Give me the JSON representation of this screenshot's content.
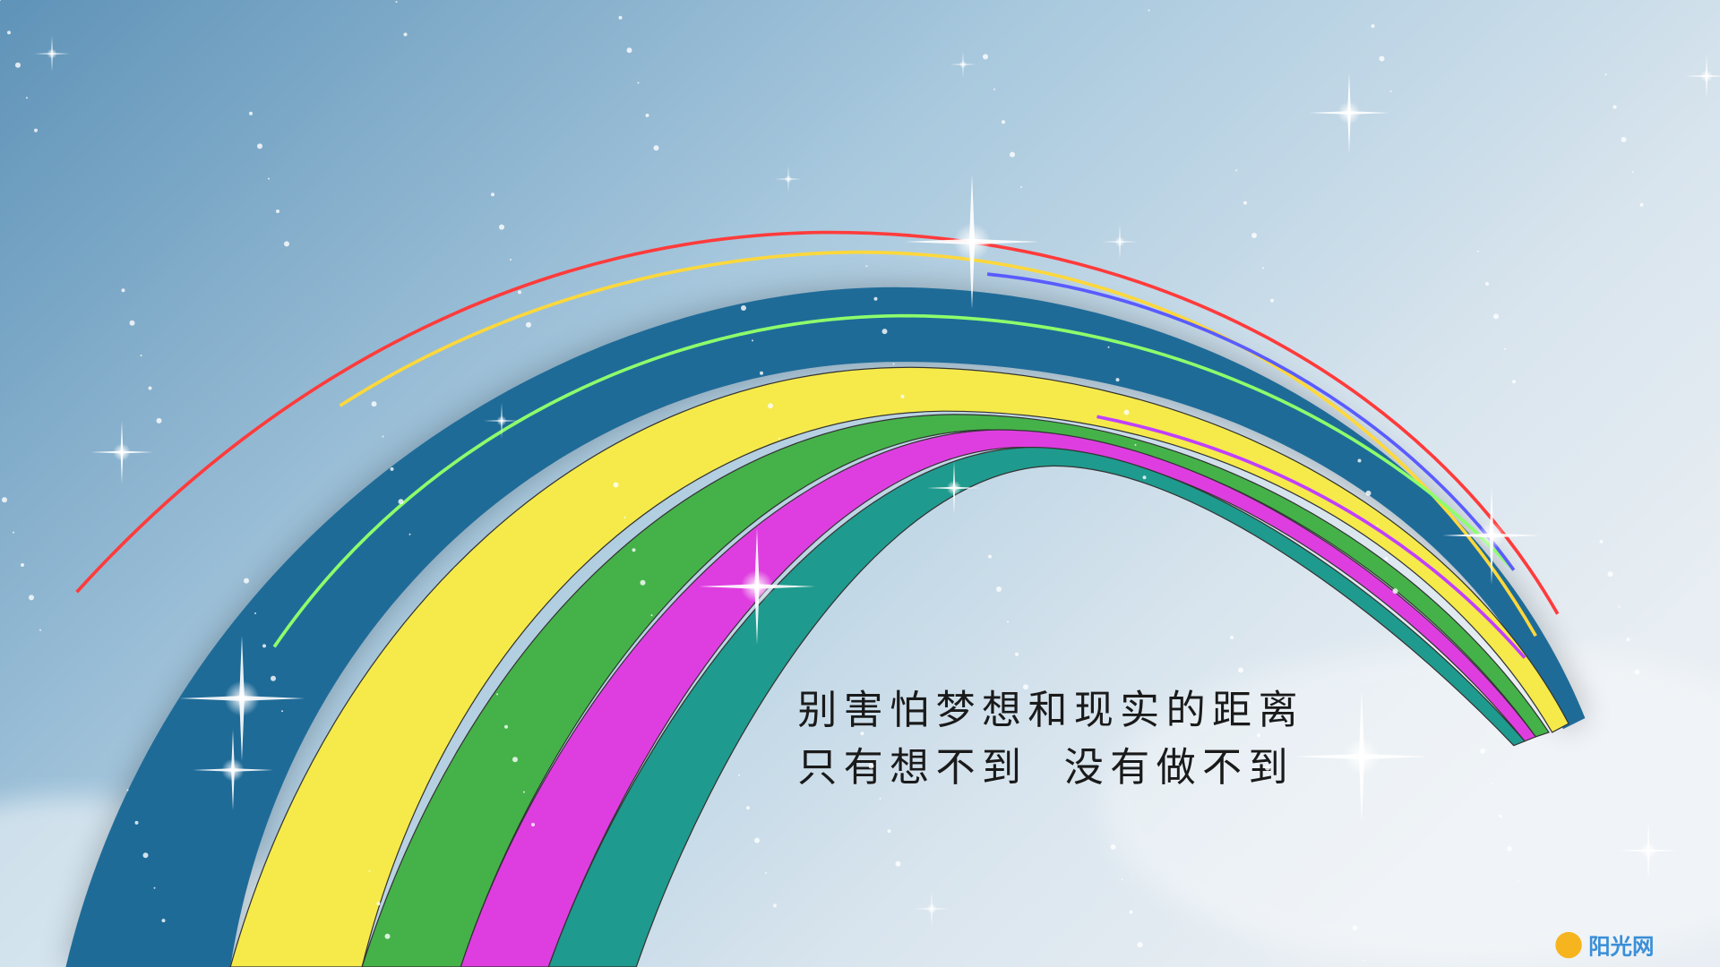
{
  "text": {
    "line1": "别害怕梦想和现实的距离",
    "line2": [
      "只有想不到",
      "没有做不到"
    ]
  },
  "watermark": {
    "logo": "阳光网"
  }
}
